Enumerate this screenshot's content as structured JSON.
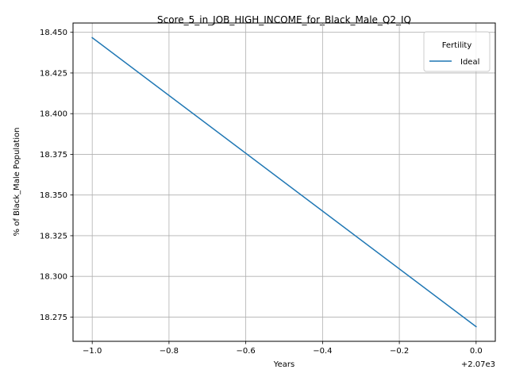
{
  "chart_data": {
    "type": "line",
    "title": "Score_5_in_JOB_HIGH_INCOME_for_Black_Male_Q2_IQ",
    "xlabel": "Years",
    "ylabel": "% of Black_Male Population",
    "x_offset_label": "+2.07e3",
    "x_ticks": [
      {
        "value": -1.0,
        "label": "−1.0"
      },
      {
        "value": -0.8,
        "label": "−0.8"
      },
      {
        "value": -0.6,
        "label": "−0.6"
      },
      {
        "value": -0.4,
        "label": "−0.4"
      },
      {
        "value": -0.2,
        "label": "−0.2"
      },
      {
        "value": 0.0,
        "label": "0.0"
      }
    ],
    "y_ticks": [
      {
        "value": 18.275,
        "label": "18.275"
      },
      {
        "value": 18.3,
        "label": "18.300"
      },
      {
        "value": 18.325,
        "label": "18.325"
      },
      {
        "value": 18.35,
        "label": "18.350"
      },
      {
        "value": 18.375,
        "label": "18.375"
      },
      {
        "value": 18.4,
        "label": "18.400"
      },
      {
        "value": 18.425,
        "label": "18.425"
      },
      {
        "value": 18.45,
        "label": "18.450"
      }
    ],
    "xlim": [
      -1.05,
      0.05
    ],
    "ylim": [
      18.2601,
      18.4557
    ],
    "grid": true,
    "legend": {
      "title": "Fertility",
      "position": "top-right"
    },
    "series": [
      {
        "name": "Ideal",
        "color": "#1f77b4",
        "x": [
          -1.0,
          0.0
        ],
        "y": [
          18.4467,
          18.2691
        ]
      }
    ]
  }
}
